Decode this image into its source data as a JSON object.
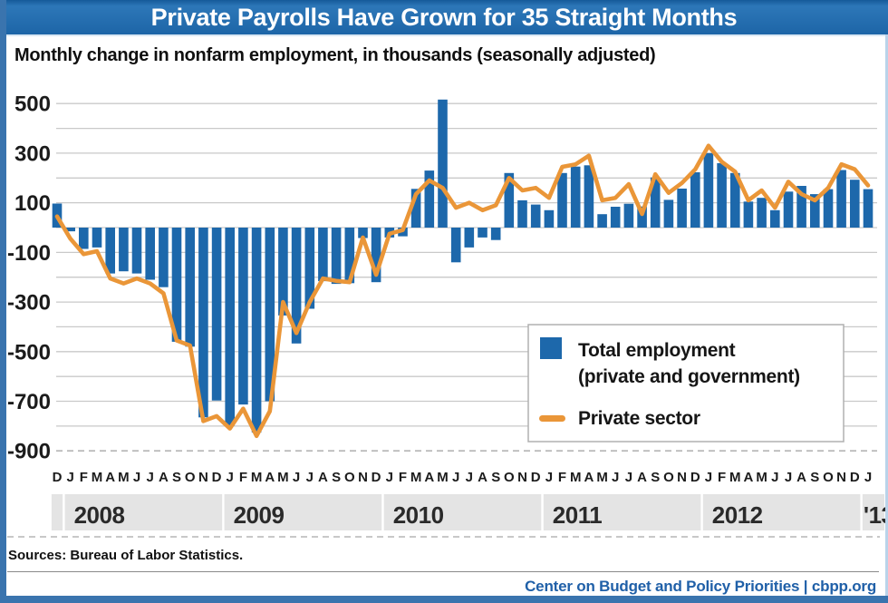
{
  "header": {
    "title": "Private Payrolls Have Grown for 35 Straight Months",
    "subtitle": "Monthly change in nonfarm employment, in thousands (seasonally adjusted)"
  },
  "footer": {
    "sources": "Sources: Bureau of Labor Statistics.",
    "credit": "Center on Budget and Policy Priorities | cbpp.org"
  },
  "colors": {
    "bar": "#1d68ab",
    "line": "#ea9638",
    "grid": "#c9c9c9",
    "grid_dashed": "#b5b5b5",
    "axis_text": "#1b1b1b",
    "year_band_bg": "#e4e4e4",
    "year_band_text": "#2a2a2a",
    "legend_border": "#b0b0b0",
    "title_bar_blue": "#1d65a7",
    "frame_blue": "#3a74ae",
    "credit_blue": "#2060a8"
  },
  "chart_data": {
    "type": "bar",
    "title": "Private Payrolls Have Grown for 35 Straight Months",
    "subtitle": "Monthly change in nonfarm employment, in thousands (seasonally adjusted)",
    "ylabel": "Monthly change in nonfarm employment, thousands",
    "ylim": [
      -900,
      500
    ],
    "grid_step": 100,
    "grid": true,
    "y_tick_labels": [
      500,
      300,
      100,
      -100,
      -300,
      -500,
      -700,
      -900
    ],
    "x_month_labels": [
      "D",
      "J",
      "F",
      "M",
      "A",
      "M",
      "J",
      "J",
      "A",
      "S",
      "O",
      "N",
      "D",
      "J",
      "F",
      "M",
      "A",
      "M",
      "J",
      "J",
      "A",
      "S",
      "O",
      "N",
      "D",
      "J",
      "F",
      "M",
      "A",
      "M",
      "J",
      "J",
      "A",
      "S",
      "O",
      "N",
      "D",
      "J",
      "F",
      "M",
      "A",
      "M",
      "J",
      "J",
      "A",
      "S",
      "O",
      "N",
      "D",
      "J",
      "F",
      "M",
      "A",
      "M",
      "J",
      "J",
      "A",
      "S",
      "O",
      "N",
      "D",
      "J"
    ],
    "x_year_bands": [
      {
        "label": "",
        "from": 0,
        "to": 0
      },
      {
        "label": "2008",
        "from": 1,
        "to": 12
      },
      {
        "label": "2009",
        "from": 13,
        "to": 24
      },
      {
        "label": "2010",
        "from": 25,
        "to": 36
      },
      {
        "label": "2011",
        "from": 37,
        "to": 48
      },
      {
        "label": "2012",
        "from": 49,
        "to": 60
      },
      {
        "label": "'13",
        "from": 61,
        "to": 61
      }
    ],
    "series": [
      {
        "name": "Total employment (private and government)",
        "type": "bar",
        "values": [
          97,
          -15,
          -86,
          -80,
          -185,
          -176,
          -185,
          -210,
          -240,
          -460,
          -480,
          -765,
          -697,
          -798,
          -713,
          -826,
          -700,
          -354,
          -467,
          -327,
          -216,
          -227,
          -224,
          -42,
          -220,
          -40,
          -35,
          156,
          230,
          516,
          -140,
          -80,
          -40,
          -50,
          220,
          110,
          93,
          70,
          220,
          246,
          251,
          54,
          84,
          96,
          85,
          202,
          112,
          157,
          223,
          300,
          260,
          220,
          105,
          120,
          70,
          145,
          168,
          135,
          155,
          232,
          193,
          155
        ]
      },
      {
        "name": "Private sector",
        "type": "line",
        "values": [
          45,
          -45,
          -107,
          -95,
          -205,
          -225,
          -205,
          -225,
          -265,
          -455,
          -475,
          -780,
          -760,
          -810,
          -730,
          -840,
          -740,
          -300,
          -425,
          -300,
          -205,
          -215,
          -220,
          -40,
          -190,
          -25,
          -10,
          135,
          190,
          160,
          80,
          100,
          70,
          90,
          200,
          150,
          160,
          120,
          245,
          255,
          290,
          110,
          120,
          175,
          55,
          215,
          140,
          180,
          235,
          330,
          265,
          225,
          110,
          150,
          80,
          185,
          135,
          110,
          160,
          255,
          235,
          170
        ]
      }
    ],
    "legend": {
      "position": "inset-bottom-right",
      "items": [
        {
          "swatch": "bar",
          "lines": [
            "Total employment",
            "(private and government)"
          ]
        },
        {
          "swatch": "line",
          "lines": [
            "Private sector"
          ]
        }
      ]
    }
  }
}
